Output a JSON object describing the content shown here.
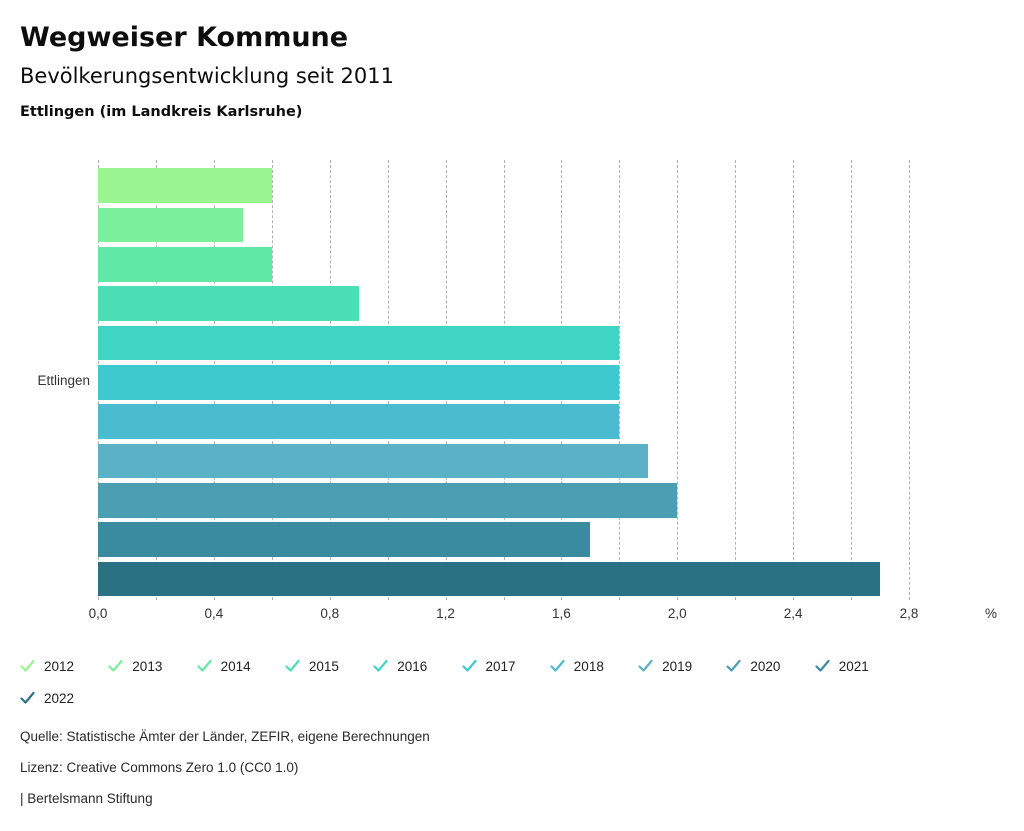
{
  "header": {
    "title": "Wegweiser Kommune",
    "subtitle": "Bevölkerungsentwicklung seit 2011",
    "region_line": "Ettlingen (im Landkreis Karlsruhe)"
  },
  "chart_data": {
    "type": "bar",
    "orientation": "horizontal",
    "title": "Bevölkerungsentwicklung seit 2011",
    "group_label": "Ettlingen",
    "categories": [
      "2012",
      "2013",
      "2014",
      "2015",
      "2016",
      "2017",
      "2018",
      "2019",
      "2020",
      "2021",
      "2022"
    ],
    "values": [
      0.6,
      0.5,
      0.6,
      0.9,
      1.8,
      1.8,
      1.8,
      1.9,
      2.0,
      1.7,
      2.7
    ],
    "unit": "%",
    "colors": [
      "#9BF590",
      "#7CEF9D",
      "#60E8A7",
      "#4ADFB5",
      "#3ED5C4",
      "#3DC9CE",
      "#4BBBD0",
      "#5BB2C7",
      "#4C9EB3",
      "#3A8B9F",
      "#297183"
    ],
    "xlim": [
      0,
      2.8
    ],
    "grid_step": 0.2,
    "label_step": 0.4,
    "x_tick_labels": [
      "0,0",
      "0,4",
      "0,8",
      "1,2",
      "1,6",
      "2,0",
      "2,4",
      "2,8"
    ],
    "axis_unit_label": "%",
    "grid": true,
    "legend_position": "bottom"
  },
  "legend": {
    "items": [
      {
        "label": "2012",
        "color": "#9BF590"
      },
      {
        "label": "2013",
        "color": "#7CEF9D"
      },
      {
        "label": "2014",
        "color": "#60E8A7"
      },
      {
        "label": "2015",
        "color": "#4ADFB5"
      },
      {
        "label": "2016",
        "color": "#3ED5C4"
      },
      {
        "label": "2017",
        "color": "#3DC9CE"
      },
      {
        "label": "2018",
        "color": "#4BBBD0"
      },
      {
        "label": "2019",
        "color": "#5BB2C7"
      },
      {
        "label": "2020",
        "color": "#4C9EB3"
      },
      {
        "label": "2021",
        "color": "#3A8B9F"
      },
      {
        "label": "2022",
        "color": "#297183"
      }
    ]
  },
  "footer": {
    "source": "Quelle: Statistische Ämter der Länder, ZEFIR, eigene Berechnungen",
    "license": "Lizenz: Creative Commons Zero 1.0 (CC0 1.0)",
    "attribution": "| Bertelsmann Stiftung"
  }
}
